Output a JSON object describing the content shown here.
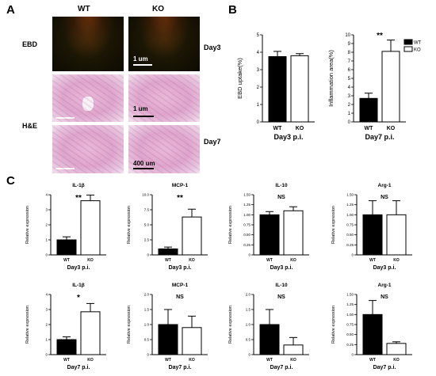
{
  "panelA": {
    "letter": "A",
    "col_wt": "WT",
    "col_ko": "KO",
    "row_ebd": "EBD",
    "row_he": "H&E",
    "day3": "Day3",
    "day7": "Day7",
    "scale_ebd": "1 um",
    "scale_he1": "1 um",
    "scale_he2": "400 um"
  },
  "panelB_letter": "B",
  "panelC_letter": "C",
  "chart_data": [
    {
      "id": "B1",
      "type": "bar",
      "title": "",
      "ylabel": "EBD uptake(%)",
      "footer": "Day3 p.i.",
      "categories": [
        "WT",
        "KO"
      ],
      "values": [
        3.75,
        3.8
      ],
      "errors": [
        0.3,
        0.12
      ],
      "ylim": [
        0,
        5
      ],
      "yticks": [
        "0",
        "1",
        "2",
        "3",
        "4",
        "5"
      ],
      "fills": [
        "#000000",
        "#ffffff"
      ],
      "significance": ""
    },
    {
      "id": "B2",
      "type": "bar",
      "title": "",
      "ylabel": "Inflammation area(%)",
      "footer": "Day7 p.i.",
      "categories": [
        "WT",
        "KO"
      ],
      "values": [
        2.7,
        8.1
      ],
      "errors": [
        0.6,
        1.3
      ],
      "ylim": [
        0,
        10
      ],
      "yticks": [
        "0",
        "1",
        "2",
        "3",
        "4",
        "5",
        "6",
        "7",
        "8",
        "9",
        "10"
      ],
      "fills": [
        "#000000",
        "#ffffff"
      ],
      "significance": "**",
      "legend": [
        "WT",
        "KO"
      ]
    },
    {
      "id": "C1",
      "type": "bar",
      "title": "IL-1β",
      "ylabel": "Relative expression",
      "footer": "Day3 p.i.",
      "categories": [
        "WT",
        "KO"
      ],
      "values": [
        1.0,
        3.6
      ],
      "errors": [
        0.2,
        0.38
      ],
      "ylim": [
        0,
        4
      ],
      "yticks": [
        "0",
        "1",
        "2",
        "3",
        "4"
      ],
      "fills": [
        "#000000",
        "#ffffff"
      ],
      "significance": "**"
    },
    {
      "id": "C2",
      "type": "bar",
      "title": "MCP-1",
      "ylabel": "Relative expression",
      "footer": "Day3 p.i.",
      "categories": [
        "WT",
        "KO"
      ],
      "values": [
        1.0,
        6.3
      ],
      "errors": [
        0.3,
        1.3
      ],
      "ylim": [
        0,
        10.0
      ],
      "yticks": [
        "0",
        "2.5",
        "5.0",
        "7.5",
        "10.0"
      ],
      "fills": [
        "#000000",
        "#ffffff"
      ],
      "significance": "**"
    },
    {
      "id": "C3",
      "type": "bar",
      "title": "IL-10",
      "ylabel": "Relative expression",
      "footer": "Day3 p.i.",
      "categories": [
        "WT",
        "KO"
      ],
      "values": [
        1.0,
        1.1
      ],
      "errors": [
        0.08,
        0.1
      ],
      "ylim": [
        0,
        1.5
      ],
      "yticks": [
        "0",
        "0.25",
        "0.50",
        "0.75",
        "1.00",
        "1.25",
        "1.50"
      ],
      "fills": [
        "#000000",
        "#ffffff"
      ],
      "significance": "NS"
    },
    {
      "id": "C4",
      "type": "bar",
      "title": "Arg-1",
      "ylabel": "Relative expression",
      "footer": "Day3 p.i.",
      "categories": [
        "WT",
        "KO"
      ],
      "values": [
        1.0,
        1.0
      ],
      "errors": [
        0.35,
        0.35
      ],
      "ylim": [
        0,
        1.5
      ],
      "yticks": [
        "0",
        "0.25",
        "0.50",
        "0.75",
        "1.00",
        "1.25",
        "1.50"
      ],
      "fills": [
        "#000000",
        "#ffffff"
      ],
      "significance": "NS"
    },
    {
      "id": "C5",
      "type": "bar",
      "title": "IL-1β",
      "ylabel": "Relative expression",
      "footer": "Day7 p.i.",
      "categories": [
        "WT",
        "KO"
      ],
      "values": [
        1.0,
        2.85
      ],
      "errors": [
        0.18,
        0.55
      ],
      "ylim": [
        0,
        4
      ],
      "yticks": [
        "0",
        "1",
        "2",
        "3",
        "4"
      ],
      "fills": [
        "#000000",
        "#ffffff"
      ],
      "significance": "*"
    },
    {
      "id": "C6",
      "type": "bar",
      "title": "MCP-1",
      "ylabel": "Relative expression",
      "footer": "Day7 p.i.",
      "categories": [
        "WT",
        "KO"
      ],
      "values": [
        1.0,
        0.9
      ],
      "errors": [
        0.5,
        0.38
      ],
      "ylim": [
        0,
        2.0
      ],
      "yticks": [
        "0",
        "0.5",
        "1.0",
        "1.5",
        "2.0"
      ],
      "fills": [
        "#000000",
        "#ffffff"
      ],
      "significance": "NS"
    },
    {
      "id": "C7",
      "type": "bar",
      "title": "IL-10",
      "ylabel": "Relative expression",
      "footer": "Day7 p.i.",
      "categories": [
        "WT",
        "KO"
      ],
      "values": [
        1.0,
        0.32
      ],
      "errors": [
        0.5,
        0.25
      ],
      "ylim": [
        0,
        2.0
      ],
      "yticks": [
        "0",
        "0.5",
        "1.0",
        "1.5",
        "2.0"
      ],
      "fills": [
        "#000000",
        "#ffffff"
      ],
      "significance": "NS"
    },
    {
      "id": "C8",
      "type": "bar",
      "title": "Arg-1",
      "ylabel": "Relative expression",
      "footer": "Day7 p.i.",
      "categories": [
        "WT",
        "KO"
      ],
      "values": [
        1.0,
        0.28
      ],
      "errors": [
        0.35,
        0.04
      ],
      "ylim": [
        0,
        1.5
      ],
      "yticks": [
        "0",
        "0.25",
        "0.50",
        "0.75",
        "1.00",
        "1.25",
        "1.50"
      ],
      "fills": [
        "#000000",
        "#ffffff"
      ],
      "significance": "NS"
    }
  ]
}
